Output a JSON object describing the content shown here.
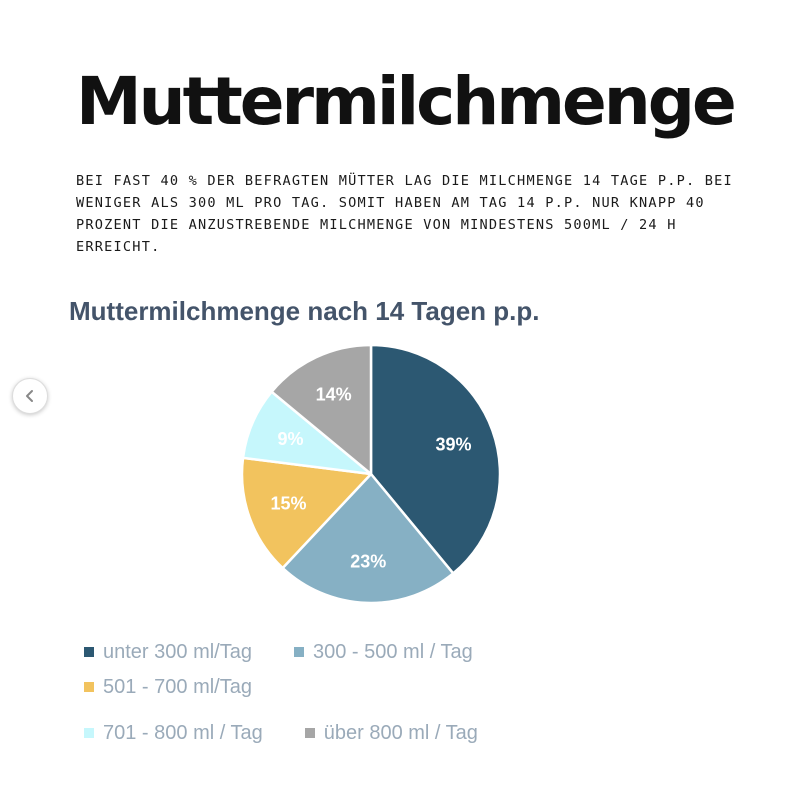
{
  "header": {
    "title": "Muttermilchmenge",
    "intro": "Bei fast 40 % der befragten Mütter lag die Milchmenge 14 Tage p.p. bei weniger als 300 ml pro Tag. Somit haben am Tag 14 p.p. nur knapp 40 Prozent die anzustrebende Milchmenge von mindestens 500ml / 24 h erreicht."
  },
  "carousel": {
    "prev_icon": "chevron-left-icon"
  },
  "chart_data": {
    "type": "pie",
    "title": "Muttermilchmenge nach 14 Tagen p.p.",
    "legend_position": "bottom",
    "slices": [
      {
        "label": "unter 300 ml/Tag",
        "value": 39,
        "display": "39%",
        "color": "#2c5872",
        "text_color": "#ffffff"
      },
      {
        "label": "300 - 500 ml / Tag",
        "value": 23,
        "display": "23%",
        "color": "#86b0c4",
        "text_color": "#ffffff"
      },
      {
        "label": "501 - 700 ml/Tag",
        "value": 15,
        "display": "15%",
        "color": "#f2c35e",
        "text_color": "#ffffff"
      },
      {
        "label": "701 - 800 ml / Tag",
        "value": 9,
        "display": "9%",
        "color": "#c6f7fc",
        "text_color": "#ffffff"
      },
      {
        "label": "über 800 ml / Tag",
        "value": 14,
        "display": "14%",
        "color": "#a6a6a6",
        "text_color": "#ffffff"
      }
    ]
  }
}
